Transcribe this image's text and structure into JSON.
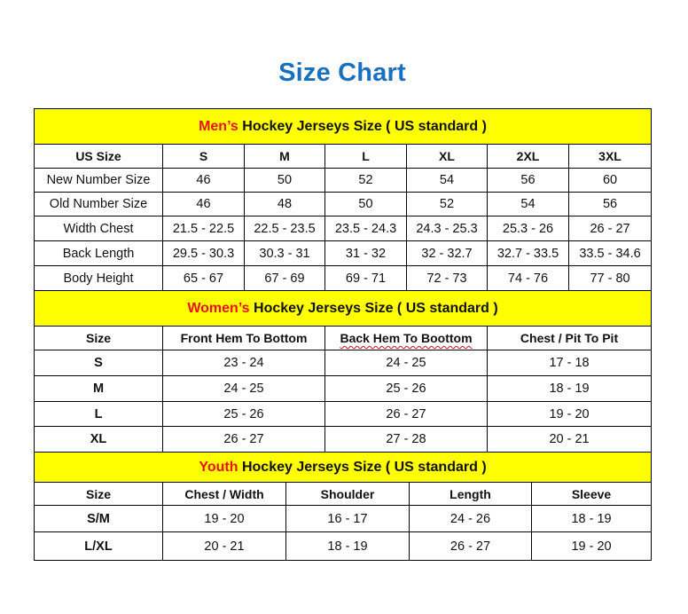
{
  "title": "Size Chart",
  "colors": {
    "title": "#1a70bf",
    "banner": "#ffff00",
    "banner_accent": "#e8121a"
  },
  "men": {
    "banner_accent": "Men’s",
    "banner_rest": " Hockey Jerseys Size ( US standard )",
    "headers": [
      "US Size",
      "S",
      "M",
      "L",
      "XL",
      "2XL",
      "3XL"
    ],
    "rows": [
      [
        "New Number Size",
        "46",
        "50",
        "52",
        "54",
        "56",
        "60"
      ],
      [
        "Old Number Size",
        "46",
        "48",
        "50",
        "52",
        "54",
        "56"
      ],
      [
        "Width Chest",
        "21.5 - 22.5",
        "22.5 - 23.5",
        "23.5 - 24.3",
        "24.3 - 25.3",
        "25.3 - 26",
        "26 - 27"
      ],
      [
        "Back Length",
        "29.5 - 30.3",
        "30.3 - 31",
        "31 - 32",
        "32 - 32.7",
        "32.7 - 33.5",
        "33.5 - 34.6"
      ],
      [
        "Body Height",
        "65 - 67",
        "67 - 69",
        "69 - 71",
        "72 - 73",
        "74 - 76",
        "77 - 80"
      ]
    ]
  },
  "women": {
    "banner_accent": "Women’s",
    "banner_rest": " Hockey Jerseys Size ( US standard )",
    "headers": [
      "Size",
      "Front Hem To Bottom",
      "Back Hem To Boottom",
      "Chest / Pit To Pit"
    ],
    "rows": [
      [
        "S",
        "23 - 24",
        "24 - 25",
        "17 - 18"
      ],
      [
        "M",
        "24 - 25",
        "25 - 26",
        "18 - 19"
      ],
      [
        "L",
        "25 - 26",
        "26 - 27",
        "19 - 20"
      ],
      [
        "XL",
        "26 - 27",
        "27 - 28",
        "20 - 21"
      ]
    ]
  },
  "youth": {
    "banner_accent": "Youth",
    "banner_rest": " Hockey Jerseys Size ( US standard )",
    "headers": [
      "Size",
      "Chest / Width",
      "Shoulder",
      "Length",
      "Sleeve"
    ],
    "rows": [
      [
        "S/M",
        "19 - 20",
        "16 - 17",
        "24 - 26",
        "18 - 19"
      ],
      [
        "L/XL",
        "20 - 21",
        "18 - 19",
        "26 - 27",
        "19 - 20"
      ]
    ]
  }
}
